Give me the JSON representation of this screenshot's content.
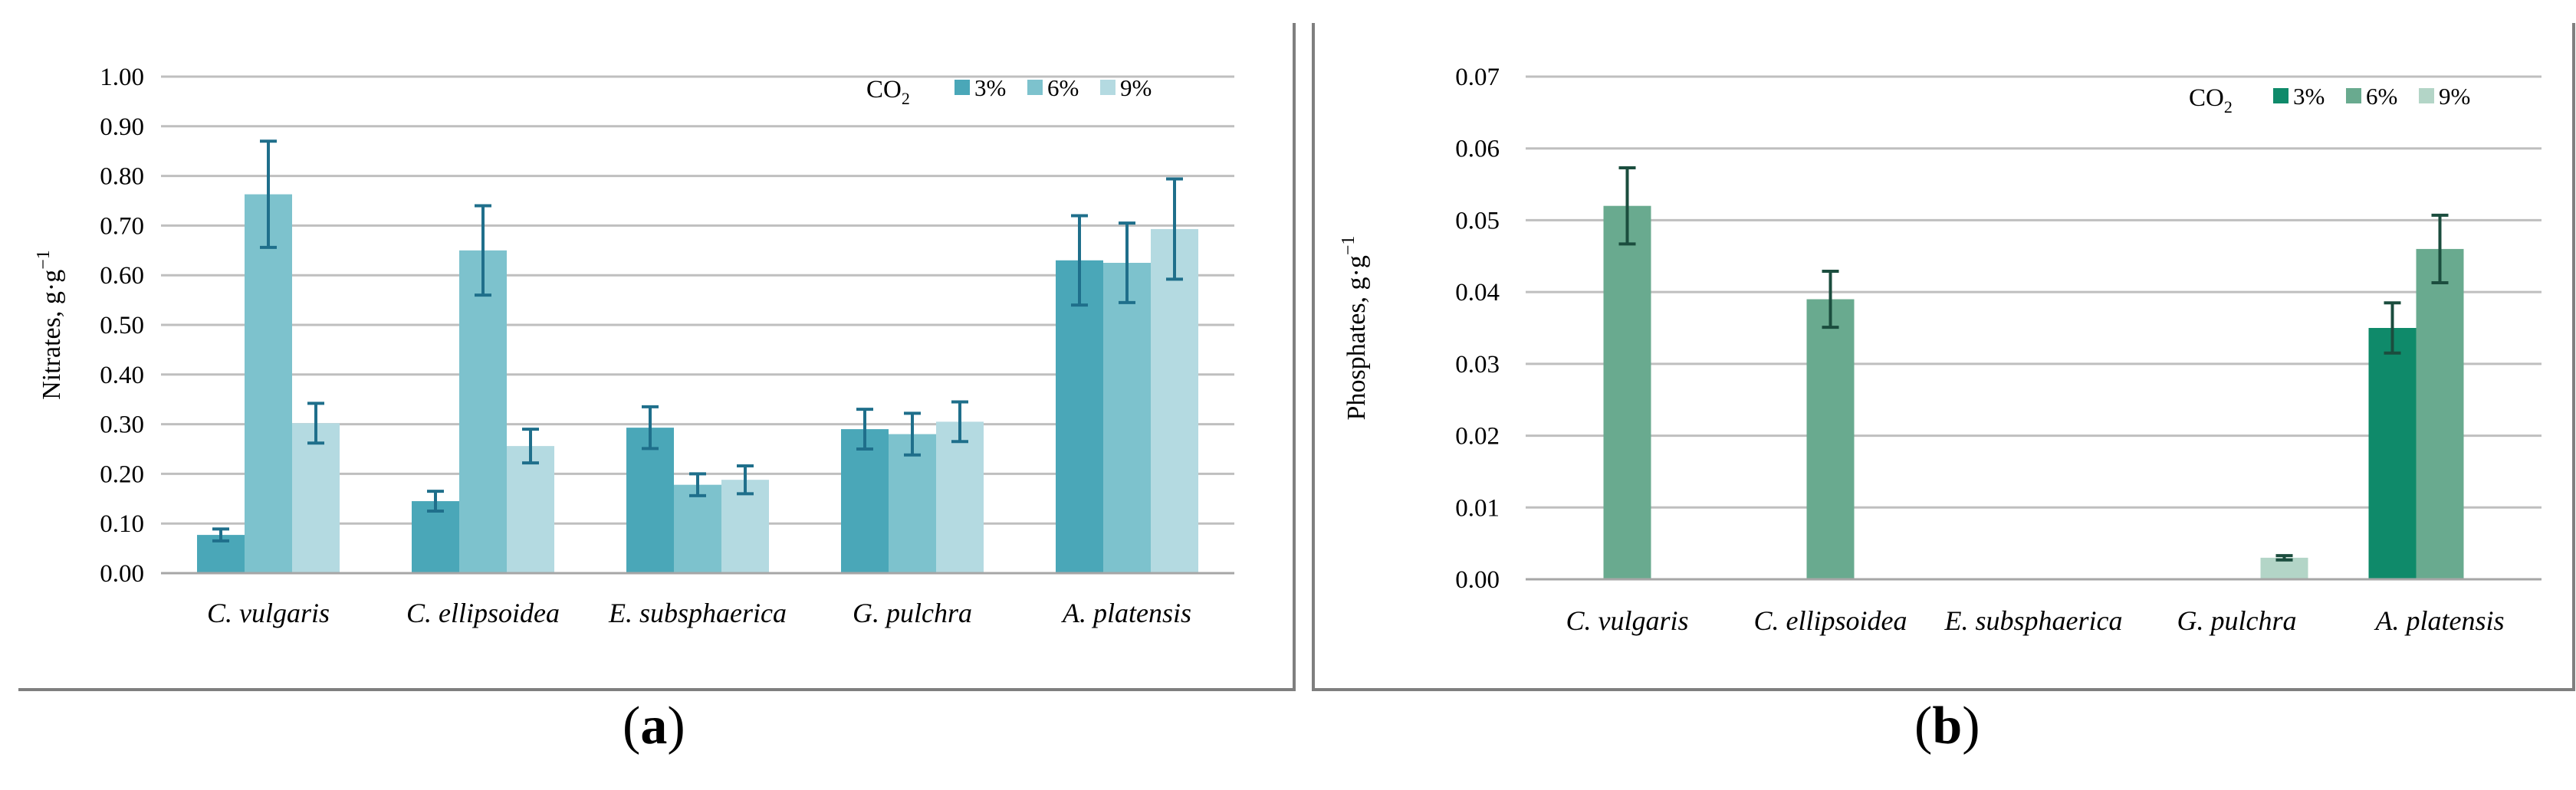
{
  "panels": [
    {
      "label": "a",
      "chart_data": {
        "type": "bar",
        "categories": [
          "C. vulgaris",
          "C. ellipsoidea",
          "E. subsphaerica",
          "G. pulchra",
          "A. platensis"
        ],
        "ylabel": "Nitrates, g·g",
        "ylabel_superscript": "−1",
        "ylim": [
          0,
          1.0
        ],
        "yticks": [
          "0.00",
          "0.10",
          "0.20",
          "0.30",
          "0.40",
          "0.50",
          "0.60",
          "0.70",
          "0.80",
          "0.90",
          "1.00"
        ],
        "legend_title": "CO",
        "legend_title_subscript": "2",
        "legend_position": "top-right",
        "grid": true,
        "series": [
          {
            "name": "3%",
            "color": "#4aa7b8",
            "values": [
              0.077,
              0.145,
              0.293,
              0.29,
              0.63
            ],
            "errors": [
              0.012,
              0.02,
              0.042,
              0.04,
              0.09
            ]
          },
          {
            "name": "6%",
            "color": "#7dc2cd",
            "values": [
              0.763,
              0.65,
              0.178,
              0.28,
              0.625
            ],
            "errors": [
              0.107,
              0.09,
              0.022,
              0.042,
              0.08
            ]
          },
          {
            "name": "9%",
            "color": "#b4dae1",
            "values": [
              0.302,
              0.256,
              0.188,
              0.305,
              0.693
            ],
            "errors": [
              0.04,
              0.034,
              0.028,
              0.04,
              0.101
            ]
          }
        ],
        "error_color": "#1f6f8b"
      }
    },
    {
      "label": "b",
      "chart_data": {
        "type": "bar",
        "categories": [
          "C. vulgaris",
          "C. ellipsoidea",
          "E. subsphaerica",
          "G. pulchra",
          "A. platensis"
        ],
        "ylabel": "Phosphates, g·g",
        "ylabel_superscript": "−1",
        "ylim": [
          0,
          0.07
        ],
        "yticks": [
          "0.00",
          "0.01",
          "0.02",
          "0.03",
          "0.04",
          "0.05",
          "0.06",
          "0.07"
        ],
        "legend_title": "CO",
        "legend_title_subscript": "2",
        "legend_position": "top-right",
        "grid": true,
        "series": [
          {
            "name": "3%",
            "color": "#0f8a6a",
            "values": [
              null,
              null,
              null,
              null,
              0.035
            ],
            "errors": [
              null,
              null,
              null,
              null,
              0.0035
            ]
          },
          {
            "name": "6%",
            "color": "#69aa8f",
            "values": [
              0.052,
              0.039,
              null,
              null,
              0.046
            ],
            "errors": [
              0.0053,
              0.0039,
              null,
              null,
              0.0047
            ]
          },
          {
            "name": "9%",
            "color": "#b3d5c7",
            "values": [
              null,
              null,
              null,
              0.003,
              null
            ],
            "errors": [
              null,
              null,
              null,
              0.0003,
              null
            ]
          }
        ],
        "error_color": "#1b4d3e"
      }
    }
  ]
}
